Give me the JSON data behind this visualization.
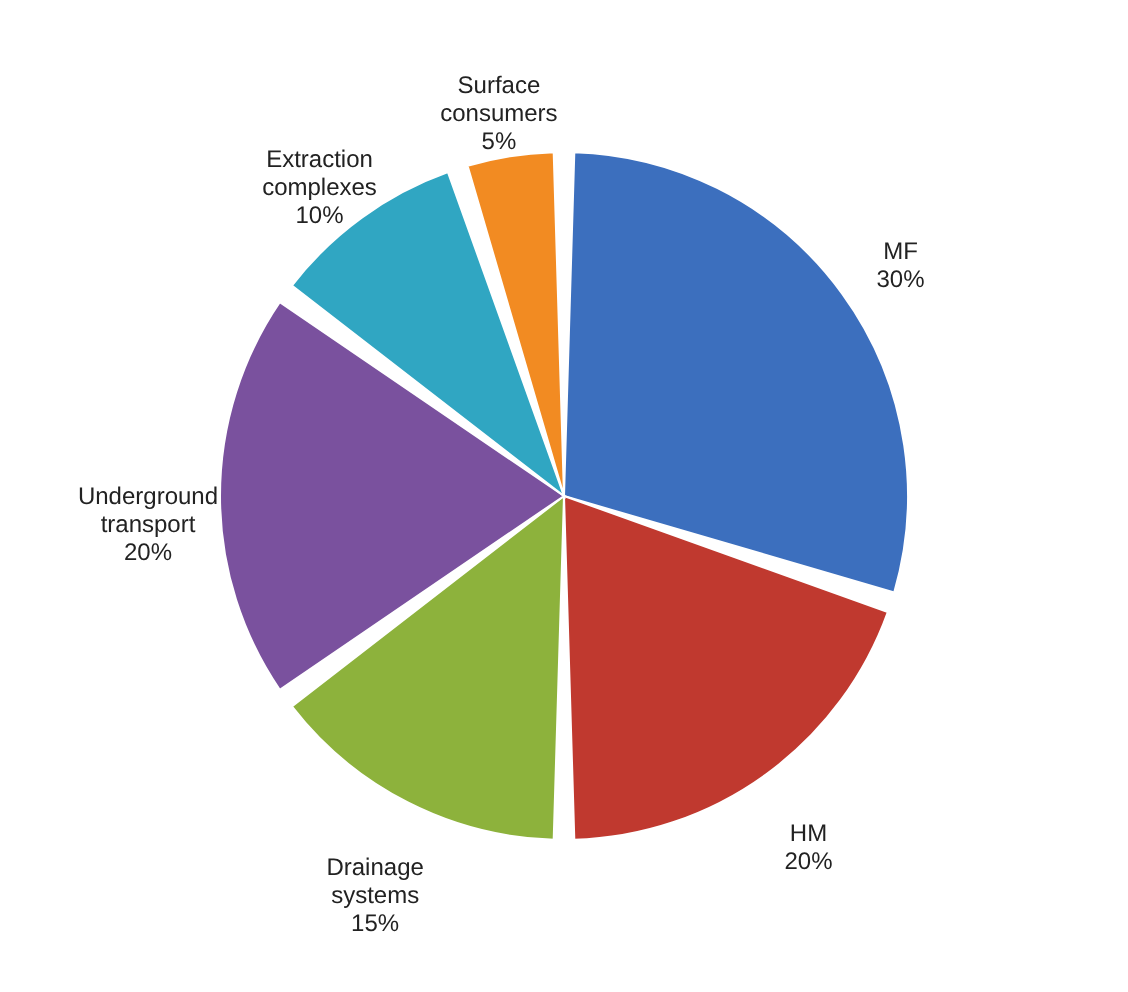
{
  "chart_data": {
    "type": "pie",
    "categories": [
      "MF",
      "HM",
      "Drainage systems",
      "Underground transport",
      "Extraction complexes",
      "Surface consumers"
    ],
    "values": [
      30,
      20,
      15,
      20,
      10,
      5
    ],
    "value_labels": [
      "30%",
      "20%",
      "15%",
      "20%",
      "10%",
      "5%"
    ],
    "colors": [
      "#3c6fbe",
      "#c0392f",
      "#8db23c",
      "#7a519e",
      "#30a6c2",
      "#f28b22"
    ]
  }
}
